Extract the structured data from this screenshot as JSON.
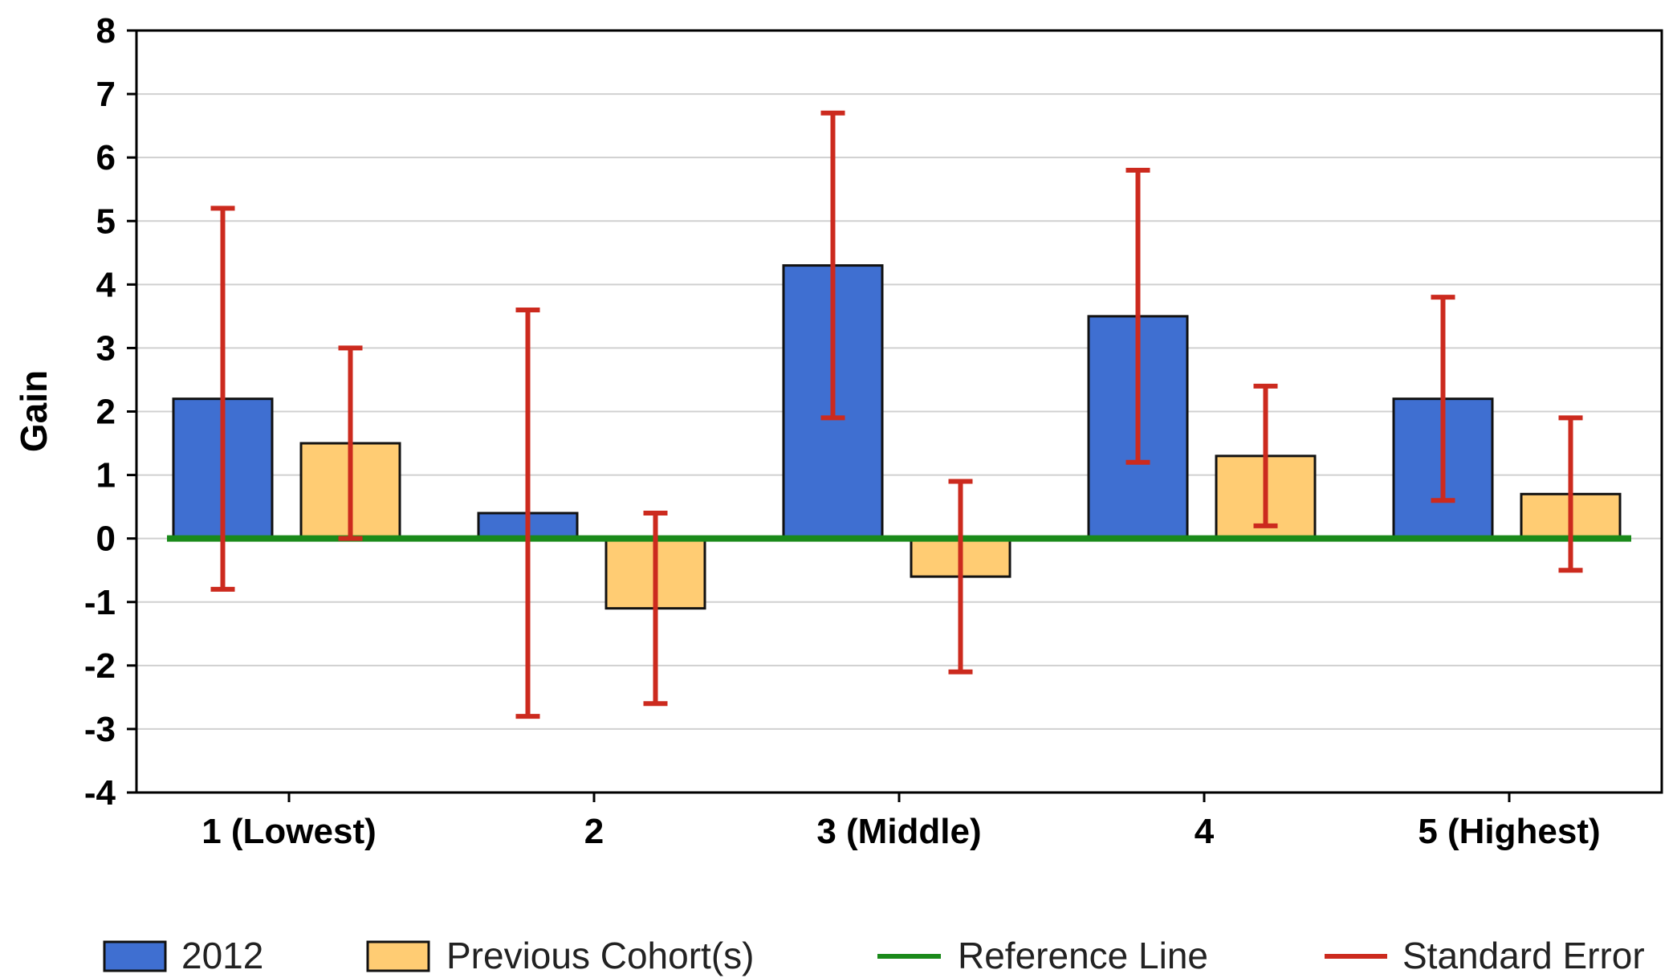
{
  "chart_data": {
    "type": "bar",
    "ylabel": "Gain",
    "xlabel": "",
    "ylim": [
      -4,
      8
    ],
    "yticks": [
      -4,
      -3,
      -2,
      -1,
      0,
      1,
      2,
      3,
      4,
      5,
      6,
      7,
      8
    ],
    "grid": true,
    "legend_position": "bottom",
    "categories": [
      "1 (Lowest)",
      "2",
      "3 (Middle)",
      "4",
      "5 (Highest)"
    ],
    "series": [
      {
        "name": "2012",
        "color": "#3f6fd1",
        "values": [
          2.2,
          0.4,
          4.3,
          3.5,
          2.2
        ],
        "error_low": [
          -0.8,
          -2.8,
          1.9,
          1.2,
          0.6
        ],
        "error_high": [
          5.2,
          3.6,
          6.7,
          5.8,
          3.8
        ]
      },
      {
        "name": "Previous Cohort(s)",
        "color": "#ffcc73",
        "values": [
          1.5,
          -1.1,
          -0.6,
          1.3,
          0.7
        ],
        "error_low": [
          0.0,
          -2.6,
          -2.1,
          0.2,
          -0.5
        ],
        "error_high": [
          3.0,
          0.4,
          0.9,
          2.4,
          1.9
        ]
      }
    ],
    "reference_line": {
      "name": "Reference Line",
      "value": 0,
      "color": "#1a8a1a"
    },
    "error_bars": {
      "name": "Standard Error",
      "color": "#cc2a1e"
    },
    "legend": [
      "2012",
      "Previous Cohort(s)",
      "Reference Line",
      "Standard Error"
    ]
  }
}
